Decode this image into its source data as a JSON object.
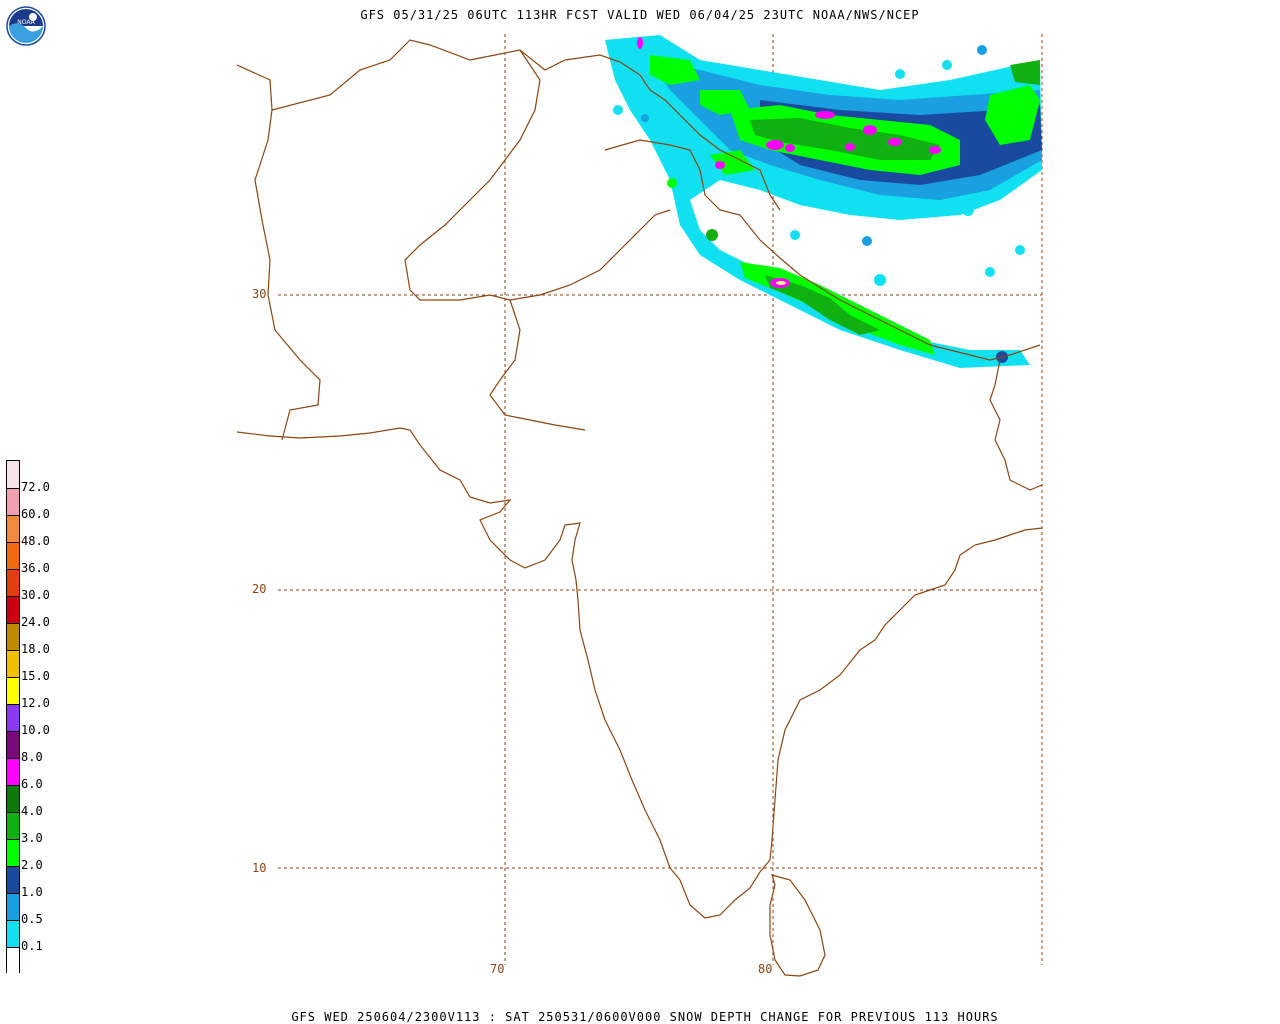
{
  "title": "GFS 05/31/25 06UTC 113HR FCST VALID WED 06/04/25 23UTC NOAA/NWS/NCEP",
  "footer": "GFS WED 250604/2300V113 : SAT 250531/0600V000 SNOW DEPTH CHANGE FOR PREVIOUS 113 HOURS",
  "logo_text": "NOAA",
  "legend": {
    "colors": [
      "#f7e4ea",
      "#f2a0b0",
      "#f08a3a",
      "#f06a10",
      "#e04010",
      "#c80010",
      "#c08a00",
      "#f0c000",
      "#ffff00",
      "#8a3af0",
      "#7a0a7a",
      "#ff00ff",
      "#0a7a0a",
      "#10b010",
      "#00ff00",
      "#1a4aa0",
      "#1aa0e0",
      "#10e0f0",
      "#ffffff"
    ],
    "labels": [
      "72.0",
      "60.0",
      "48.0",
      "36.0",
      "30.0",
      "24.0",
      "18.0",
      "15.0",
      "12.0",
      "10.0",
      "8.0",
      "6.0",
      "4.0",
      "3.0",
      "2.0",
      "1.0",
      "0.5",
      "0.1"
    ]
  },
  "grid": {
    "lat_labels": [
      "30",
      "20",
      "10"
    ],
    "lon_labels": [
      "70",
      "80"
    ],
    "color": "#8b4513"
  }
}
